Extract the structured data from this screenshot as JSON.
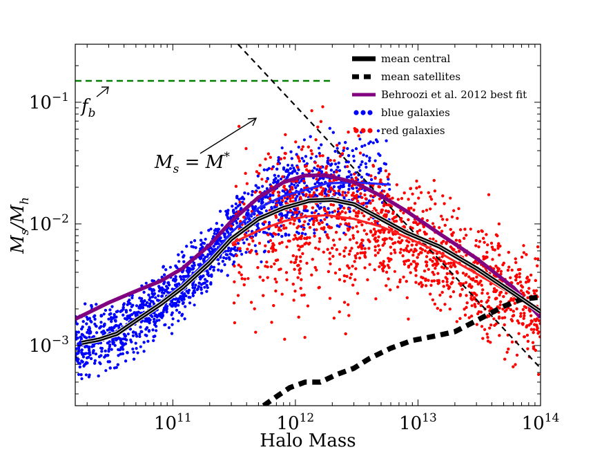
{
  "chart_data": {
    "type": "scatter",
    "xlabel": "Halo Mass",
    "ylabel": "Ms/Mh",
    "xscale": "log",
    "yscale": "log",
    "xlim": [
      16000000000.0,
      100000000000000.0
    ],
    "ylim": [
      0.00032,
      0.3
    ],
    "x_ticks": [
      {
        "base": "10",
        "exp": "11",
        "value": 100000000000.0
      },
      {
        "base": "10",
        "exp": "12",
        "value": 1000000000000.0
      },
      {
        "base": "10",
        "exp": "13",
        "value": 10000000000000.0
      },
      {
        "base": "10",
        "exp": "14",
        "value": 100000000000000.0
      }
    ],
    "y_ticks": [
      {
        "base": "10",
        "exp": "−3",
        "value": 0.001
      },
      {
        "base": "10",
        "exp": "−2",
        "value": 0.01
      },
      {
        "base": "10",
        "exp": "−1",
        "value": 0.1
      }
    ],
    "grid": false,
    "legend_position": "top-right",
    "legend": [
      {
        "label": "mean central",
        "style": "thick-solid",
        "color": "#000000"
      },
      {
        "label": "mean satellites",
        "style": "thick-dashed",
        "color": "#000000"
      },
      {
        "label": "Behroozi et al. 2012 best fit",
        "style": "solid",
        "color": "#800080"
      },
      {
        "label": "blue galaxies",
        "style": "points",
        "color": "#0000ff"
      },
      {
        "label": "red galaxies",
        "style": "points",
        "color": "#ff0000"
      }
    ],
    "series": [
      {
        "name": "mean central",
        "kind": "line",
        "color": "#000000",
        "x": [
          18000000000.0,
          25000000000.0,
          35000000000.0,
          50000000000.0,
          80000000000.0,
          120000000000.0,
          200000000000.0,
          300000000000.0,
          500000000000.0,
          800000000000.0,
          1300000000000.0,
          2000000000000.0,
          3000000000000.0,
          5000000000000.0,
          8000000000000.0,
          15000000000000.0,
          30000000000000.0,
          60000000000000.0,
          100000000000000.0
        ],
        "y": [
          0.00105,
          0.00112,
          0.00125,
          0.0016,
          0.0022,
          0.003,
          0.0048,
          0.0075,
          0.011,
          0.0135,
          0.0155,
          0.0158,
          0.0145,
          0.011,
          0.0085,
          0.0065,
          0.0043,
          0.0027,
          0.0019
        ]
      },
      {
        "name": "mean satellites",
        "kind": "line",
        "dashed": true,
        "color": "#000000",
        "x": [
          550000000000.0,
          700000000000.0,
          900000000000.0,
          1200000000000.0,
          1600000000000.0,
          2200000000000.0,
          3000000000000.0,
          4000000000000.0,
          6000000000000.0,
          9000000000000.0,
          14000000000000.0,
          20000000000000.0,
          30000000000000.0,
          50000000000000.0,
          70000000000000.0,
          100000000000000.0
        ],
        "y": [
          0.00032,
          0.00038,
          0.00045,
          0.0005,
          0.0005,
          0.00058,
          0.00065,
          0.00078,
          0.00095,
          0.0011,
          0.0012,
          0.0013,
          0.0016,
          0.0021,
          0.0024,
          0.0025
        ]
      },
      {
        "name": "Behroozi et al. 2012 best fit",
        "kind": "line",
        "color": "#800080",
        "x": [
          16000000000.0,
          30000000000.0,
          50000000000.0,
          80000000000.0,
          120000000000.0,
          200000000000.0,
          300000000000.0,
          500000000000.0,
          800000000000.0,
          1200000000000.0,
          1800000000000.0,
          3000000000000.0,
          5000000000000.0,
          8000000000000.0,
          15000000000000.0,
          30000000000000.0,
          60000000000000.0,
          100000000000000.0
        ],
        "y": [
          0.00165,
          0.00225,
          0.0028,
          0.0034,
          0.0043,
          0.0067,
          0.0105,
          0.0165,
          0.022,
          0.025,
          0.025,
          0.022,
          0.017,
          0.0128,
          0.0083,
          0.0052,
          0.003,
          0.0017
        ]
      },
      {
        "name": "blue mean",
        "kind": "line",
        "color": "#2222ff",
        "x": [
          18000000000.0,
          30000000000.0,
          50000000000.0,
          80000000000.0,
          120000000000.0,
          200000000000.0,
          300000000000.0,
          500000000000.0,
          800000000000.0,
          1200000000000.0,
          1800000000000.0,
          3000000000000.0,
          6000000000000.0
        ],
        "y": [
          0.00102,
          0.0012,
          0.0016,
          0.0023,
          0.0032,
          0.0052,
          0.0085,
          0.0135,
          0.017,
          0.019,
          0.0215,
          0.022,
          0.021
        ]
      },
      {
        "name": "red mean",
        "kind": "line",
        "color": "#ff2222",
        "x": [
          300000000000.0,
          500000000000.0,
          800000000000.0,
          1200000000000.0,
          1800000000000.0,
          3000000000000.0,
          5000000000000.0,
          8000000000000.0,
          15000000000000.0,
          30000000000000.0,
          60000000000000.0,
          100000000000000.0
        ],
        "y": [
          0.0069,
          0.0088,
          0.0105,
          0.0115,
          0.0118,
          0.011,
          0.0095,
          0.0078,
          0.0058,
          0.0039,
          0.0026,
          0.0019
        ]
      },
      {
        "name": "Ms = M* line",
        "kind": "line",
        "dashed": true,
        "color": "#000000",
        "x": [
          340000000000.0,
          100000000000000.0
        ],
        "y": [
          0.3,
          0.00065
        ]
      },
      {
        "name": "f_b",
        "kind": "line",
        "dashed": true,
        "color": "#008000",
        "x": [
          16000000000.0,
          2000000000000.0
        ],
        "y": [
          0.15,
          0.15
        ]
      },
      {
        "name": "blue galaxies",
        "kind": "scatter",
        "color": "#0000ff",
        "x_range": [
          16000000000.0,
          6000000000000.0
        ],
        "sample_points": [
          {
            "x": 20000000000.0,
            "y": 0.001
          },
          {
            "x": 50000000000.0,
            "y": 0.0017
          },
          {
            "x": 100000000000.0,
            "y": 0.003
          },
          {
            "x": 200000000000.0,
            "y": 0.006
          },
          {
            "x": 500000000000.0,
            "y": 0.013
          },
          {
            "x": 1000000000000.0,
            "y": 0.019
          },
          {
            "x": 3000000000000.0,
            "y": 0.021
          }
        ]
      },
      {
        "name": "red galaxies",
        "kind": "scatter",
        "color": "#ff0000",
        "x_range": [
          300000000000.0,
          100000000000000.0
        ],
        "sample_points": [
          {
            "x": 500000000000.0,
            "y": 0.009
          },
          {
            "x": 1000000000000.0,
            "y": 0.0115
          },
          {
            "x": 3000000000000.0,
            "y": 0.011
          },
          {
            "x": 10000000000000.0,
            "y": 0.007
          },
          {
            "x": 30000000000000.0,
            "y": 0.004
          },
          {
            "x": 100000000000000.0,
            "y": 0.0019
          }
        ]
      }
    ],
    "annotations": [
      {
        "label": "f_b",
        "base": "f",
        "sub": "b"
      },
      {
        "label": "Ms = M*",
        "base": "M",
        "sub": "s",
        "rhs": "M",
        "sup": "*"
      }
    ]
  }
}
